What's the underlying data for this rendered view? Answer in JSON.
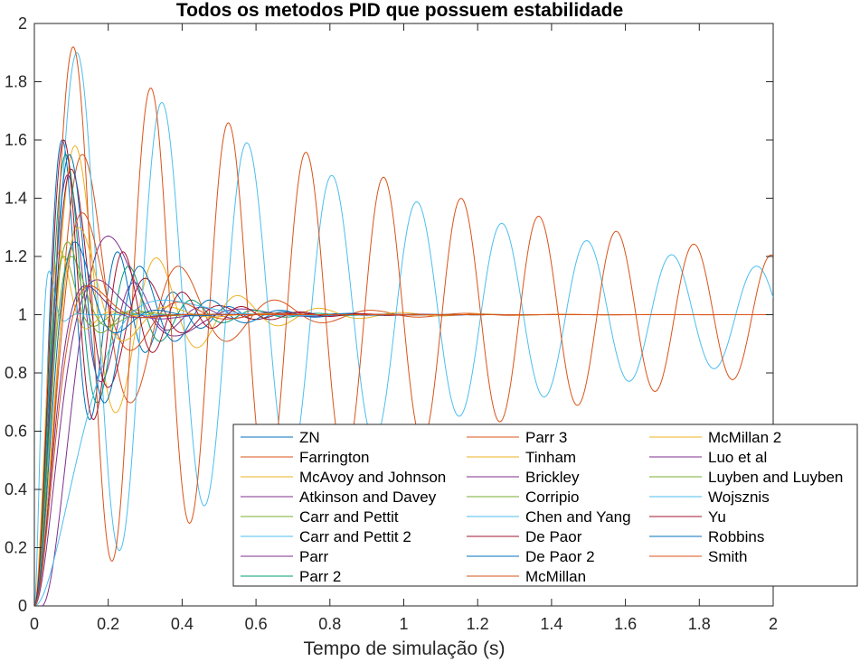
{
  "chart_data": {
    "type": "line",
    "title": "Todos os metodos PID que possuem estabilidade",
    "xlabel": "Tempo de simulação (s)",
    "ylabel": "",
    "xlim": [
      0,
      2
    ],
    "ylim": [
      0,
      2
    ],
    "x_ticks": [
      "0",
      "0.2",
      "0.4",
      "0.6",
      "0.8",
      "1",
      "1.2",
      "1.4",
      "1.6",
      "1.8",
      "2"
    ],
    "y_ticks": [
      "0",
      "0.2",
      "0.4",
      "0.6",
      "0.8",
      "1",
      "1.2",
      "1.4",
      "1.6",
      "1.8",
      "2"
    ],
    "grid": false,
    "legend_location": "bottom-right, 3 columns",
    "series": [
      {
        "name": "ZN",
        "color": "#0072BD",
        "peak": 1.6,
        "peak_time": 0.075,
        "settle": 0.45,
        "cycles": 3,
        "start_time": 0.0
      },
      {
        "name": "Farrington",
        "color": "#D95319",
        "peak": 1.55,
        "peak_time": 0.13,
        "settle": 0.35,
        "cycles": 3,
        "start_time": 0.0
      },
      {
        "name": "McAvoy and Johnson",
        "color": "#EDB120",
        "peak": 1.58,
        "peak_time": 0.11,
        "settle": 0.42,
        "cycles": 3,
        "start_time": 0.0
      },
      {
        "name": "Atkinson and Davey",
        "color": "#7E2F8E",
        "peak": 1.48,
        "peak_time": 0.09,
        "settle": 0.4,
        "cycles": 3,
        "start_time": 0.0
      },
      {
        "name": "Carr and Pettit",
        "color": "#77AC30",
        "peak": 1.2,
        "peak_time": 0.08,
        "settle": 0.3,
        "cycles": 3,
        "start_time": 0.0
      },
      {
        "name": "Carr and Pettit 2",
        "color": "#4DBEEE",
        "peak": 1.9,
        "peak_time": 0.115,
        "settle": 0.8,
        "cycles": 8,
        "start_time": 0.0
      },
      {
        "name": "Parr",
        "color": "#7E2F8E",
        "peak": 1.27,
        "peak_time": 0.2,
        "settle": 0.25,
        "cycles": 2,
        "start_time": 0.02
      },
      {
        "name": "Parr 2",
        "color": "#009E73",
        "peak": 1.55,
        "peak_time": 0.085,
        "settle": 0.45,
        "cycles": 3,
        "start_time": 0.0
      },
      {
        "name": "Parr 3",
        "color": "#D95319",
        "peak": 1.92,
        "peak_time": 0.105,
        "settle": 0.9,
        "cycles": 9,
        "start_time": 0.0
      },
      {
        "name": "Tinham",
        "color": "#EDB120",
        "peak": 1.22,
        "peak_time": 0.07,
        "settle": 0.35,
        "cycles": 3,
        "start_time": 0.0
      },
      {
        "name": "Brickley",
        "color": "#7E2F8E",
        "peak": 1.12,
        "peak_time": 0.17,
        "settle": 0.4,
        "cycles": 2,
        "start_time": 0.0
      },
      {
        "name": "Corripio",
        "color": "#77AC30",
        "peak": 1.25,
        "peak_time": 0.09,
        "settle": 0.35,
        "cycles": 3,
        "start_time": 0.0
      },
      {
        "name": "Chen and Yang",
        "color": "#4DBEEE",
        "peak": 1.15,
        "peak_time": 0.04,
        "settle": 0.15,
        "cycles": 1,
        "start_time": 0.0
      },
      {
        "name": "De Paor",
        "color": "#A2142F",
        "peak": 1.5,
        "peak_time": 0.1,
        "settle": 0.4,
        "cycles": 3,
        "start_time": 0.0
      },
      {
        "name": "De Paor 2",
        "color": "#0072BD",
        "peak": 1.55,
        "peak_time": 0.095,
        "settle": 0.4,
        "cycles": 3,
        "start_time": 0.0
      },
      {
        "name": "McMillan",
        "color": "#D95319",
        "peak": 1.35,
        "peak_time": 0.13,
        "settle": 0.35,
        "cycles": 3,
        "start_time": 0.0
      },
      {
        "name": "McMillan 2",
        "color": "#EDB120",
        "peak": 1.3,
        "peak_time": 0.12,
        "settle": 0.35,
        "cycles": 3,
        "start_time": 0.0
      },
      {
        "name": "Luo et al",
        "color": "#7E2F8E",
        "peak": 1.1,
        "peak_time": 0.14,
        "settle": 0.4,
        "cycles": 2,
        "start_time": 0.0
      },
      {
        "name": "Luyben and Luyben",
        "color": "#77AC30",
        "peak": 1.2,
        "peak_time": 0.1,
        "settle": 0.3,
        "cycles": 3,
        "start_time": 0.0
      },
      {
        "name": "Wojsznis",
        "color": "#4DBEEE",
        "peak": 1.05,
        "peak_time": 0.35,
        "settle": 0.8,
        "cycles": 1,
        "start_time": 0.0
      },
      {
        "name": "Yu",
        "color": "#A2142F",
        "peak": 1.6,
        "peak_time": 0.08,
        "settle": 0.4,
        "cycles": 3,
        "start_time": 0.0
      },
      {
        "name": "Robbins",
        "color": "#0072BD",
        "peak": 1.25,
        "peak_time": 0.11,
        "settle": 0.4,
        "cycles": 3,
        "start_time": 0.0
      },
      {
        "name": "Smith",
        "color": "#D95319",
        "peak": 1.1,
        "peak_time": 0.15,
        "settle": 0.4,
        "cycles": 2,
        "start_time": 0.0
      }
    ]
  }
}
